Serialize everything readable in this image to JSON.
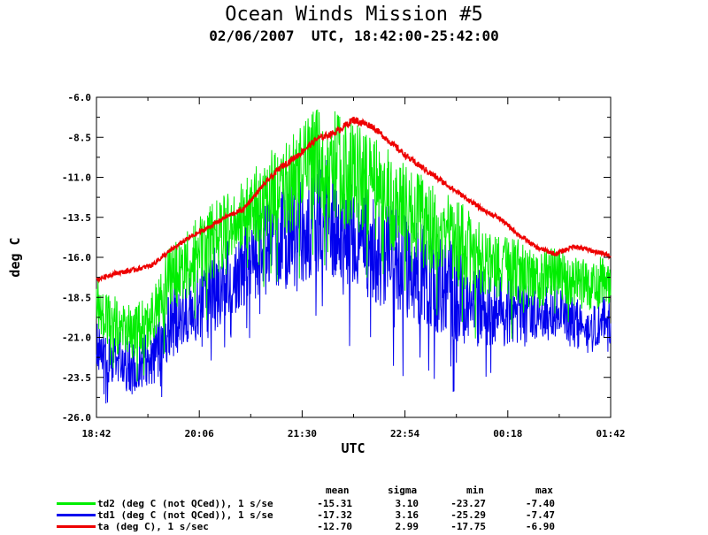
{
  "header": {
    "title": "Ocean Winds Mission #5",
    "subtitle": "02/06/2007  UTC, 18:42:00-25:42:00"
  },
  "legend_table": {
    "columns": [
      "mean",
      "sigma",
      "min",
      "max"
    ],
    "rows": [
      {
        "label": "td2 (deg C (not QCed)), 1 s/se",
        "mean": "-15.31",
        "sigma": "3.10",
        "min": "-23.27",
        "max": "-7.40",
        "color": "#00ee00"
      },
      {
        "label": "td1 (deg C (not QCed)), 1 s/se",
        "mean": "-17.32",
        "sigma": "3.16",
        "min": "-25.29",
        "max": "-7.47",
        "color": "#0000ee"
      },
      {
        "label": "ta (deg C), 1 s/sec",
        "mean": "-12.70",
        "sigma": "2.99",
        "min": "-17.75",
        "max": "-6.90",
        "color": "#ee0000"
      }
    ]
  },
  "chart_data": {
    "type": "line",
    "xlabel": "UTC",
    "ylabel": "deg C",
    "xlim": [
      0,
      7
    ],
    "ylim": [
      -26.0,
      -6.0
    ],
    "x_ticks": [
      0,
      1.4,
      2.8,
      4.2,
      5.6,
      7.0
    ],
    "x_tick_labels": [
      "18:42",
      "20:06",
      "21:30",
      "22:54",
      "00:18",
      "01:42"
    ],
    "y_ticks": [
      -6.0,
      -8.5,
      -11.0,
      -13.5,
      -16.0,
      -18.5,
      -21.0,
      -23.5,
      -26.0
    ],
    "y_tick_labels": [
      "-6.0",
      "-8.5",
      "-11.0",
      "-13.5",
      "-16.0",
      "-18.5",
      "-21.0",
      "-23.5",
      "-26.0"
    ],
    "grid": false,
    "x_units": "hours after 18:42 UTC",
    "series": [
      {
        "name": "td2 (deg C (not QCed)), 1 s/se",
        "color": "#00ee00",
        "x": [
          0,
          0.25,
          0.5,
          0.75,
          1.0,
          1.25,
          1.5,
          1.75,
          2.0,
          2.25,
          2.5,
          2.75,
          3.0,
          3.25,
          3.5,
          3.75,
          4.0,
          4.25,
          4.5,
          4.75,
          5.0,
          5.25,
          5.5,
          5.75,
          6.0,
          6.25,
          6.5,
          6.75,
          7.0
        ],
        "y": [
          -19.0,
          -20.2,
          -20.8,
          -20.0,
          -17.6,
          -16.4,
          -15.5,
          -14.4,
          -13.6,
          -12.4,
          -11.8,
          -11.2,
          -10.2,
          -10.4,
          -11.0,
          -11.8,
          -12.6,
          -13.4,
          -14.0,
          -14.8,
          -15.4,
          -16.4,
          -16.6,
          -17.0,
          -17.6,
          -17.0,
          -17.6,
          -17.8,
          -17.4
        ],
        "noise": [
          1.4,
          1.8,
          1.5,
          1.5,
          2.0,
          2.0,
          2.2,
          2.0,
          2.0,
          2.4,
          2.6,
          2.8,
          3.0,
          3.0,
          3.0,
          2.8,
          2.8,
          2.6,
          2.6,
          2.6,
          2.4,
          2.0,
          1.8,
          1.8,
          1.6,
          1.4,
          1.4,
          1.4,
          1.4
        ]
      },
      {
        "name": "td1 (deg C (not QCed)), 1 s/se",
        "color": "#0000ee",
        "x": [
          0,
          0.25,
          0.5,
          0.75,
          1.0,
          1.25,
          1.5,
          1.75,
          2.0,
          2.25,
          2.5,
          2.75,
          3.0,
          3.25,
          3.5,
          3.75,
          4.0,
          4.25,
          4.5,
          4.75,
          5.0,
          5.25,
          5.5,
          5.75,
          6.0,
          6.25,
          6.5,
          6.75,
          7.0
        ],
        "y": [
          -21.6,
          -22.4,
          -23.0,
          -22.4,
          -20.4,
          -19.4,
          -18.6,
          -17.6,
          -16.8,
          -15.6,
          -15.0,
          -14.6,
          -13.6,
          -13.8,
          -14.6,
          -15.4,
          -16.2,
          -16.8,
          -17.4,
          -18.0,
          -18.6,
          -19.2,
          -19.4,
          -19.6,
          -19.8,
          -19.4,
          -20.2,
          -20.6,
          -19.8
        ],
        "noise": [
          1.4,
          1.6,
          1.6,
          1.6,
          2.0,
          2.0,
          2.4,
          2.2,
          2.2,
          2.6,
          2.8,
          3.0,
          3.2,
          3.2,
          3.0,
          3.0,
          3.0,
          2.8,
          2.8,
          2.8,
          2.6,
          2.2,
          2.0,
          1.8,
          1.6,
          1.4,
          1.4,
          1.4,
          1.4
        ]
      },
      {
        "name": "ta (deg C), 1 s/sec",
        "color": "#ee0000",
        "x": [
          0,
          0.25,
          0.5,
          0.75,
          1.0,
          1.25,
          1.5,
          1.75,
          2.0,
          2.25,
          2.5,
          2.75,
          3.0,
          3.25,
          3.5,
          3.75,
          4.0,
          4.25,
          4.5,
          4.75,
          5.0,
          5.25,
          5.5,
          5.75,
          6.0,
          6.25,
          6.5,
          6.75,
          7.0
        ],
        "y": [
          -17.4,
          -17.0,
          -16.8,
          -16.5,
          -15.6,
          -14.8,
          -14.2,
          -13.5,
          -13.0,
          -11.6,
          -10.4,
          -9.6,
          -8.6,
          -8.2,
          -7.4,
          -7.8,
          -8.8,
          -9.8,
          -10.6,
          -11.4,
          -12.2,
          -13.0,
          -13.6,
          -14.6,
          -15.4,
          -15.8,
          -15.3,
          -15.6,
          -15.9
        ],
        "noise": [
          0.15,
          0.15,
          0.15,
          0.15,
          0.15,
          0.15,
          0.15,
          0.15,
          0.15,
          0.15,
          0.2,
          0.2,
          0.2,
          0.2,
          0.25,
          0.2,
          0.2,
          0.2,
          0.2,
          0.2,
          0.15,
          0.15,
          0.15,
          0.15,
          0.15,
          0.15,
          0.15,
          0.15,
          0.15
        ]
      }
    ]
  }
}
